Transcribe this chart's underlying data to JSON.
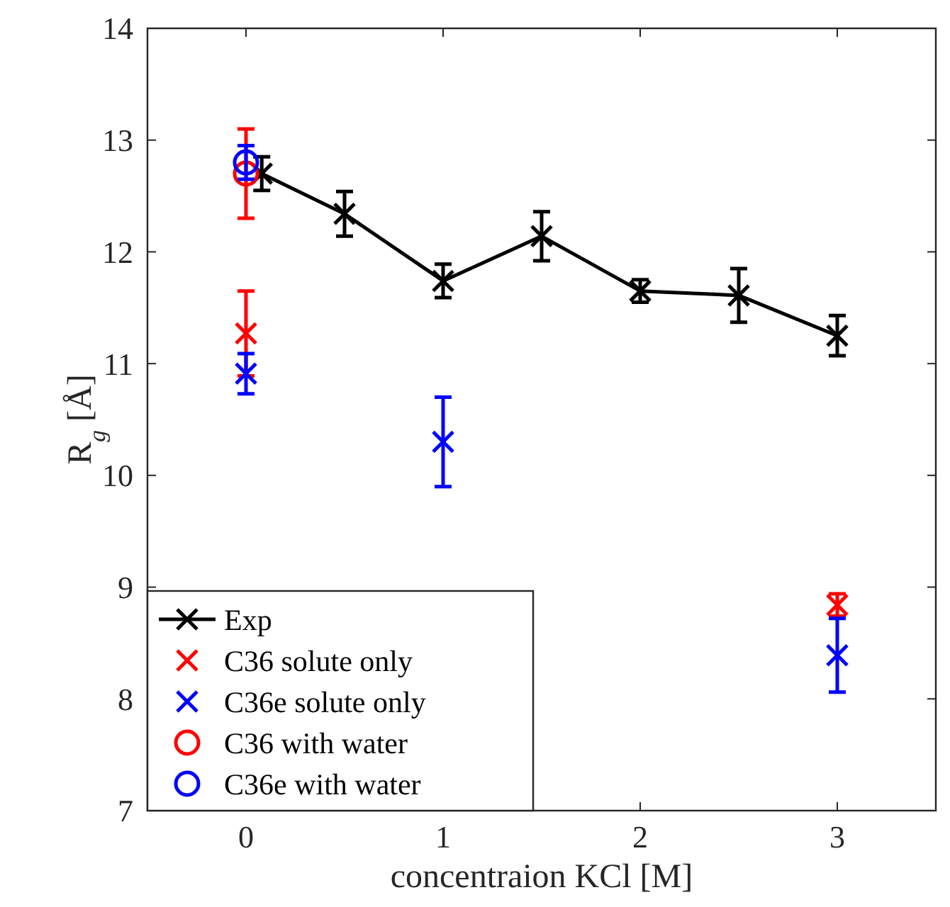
{
  "chart_data": {
    "type": "scatter",
    "xlabel": "concentraion KCl [M]",
    "ylabel": "R$_{g}$ [Å]",
    "xlim": [
      -0.5,
      3.5
    ],
    "ylim": [
      7,
      14
    ],
    "xticks": [
      0,
      1,
      2,
      3
    ],
    "yticks": [
      7,
      8,
      9,
      10,
      11,
      12,
      13,
      14
    ],
    "legend": "bottom left",
    "series": [
      {
        "name": "Exp",
        "type": "line",
        "color": "#000000",
        "marker": "cross",
        "line_style": "solid",
        "x": [
          0.08,
          0.5,
          1,
          1.5,
          2,
          2.5,
          3
        ],
        "values": [
          12.7,
          12.34,
          11.74,
          12.14,
          11.65,
          11.61,
          11.25
        ],
        "errors": [
          0.15,
          0.2,
          0.15,
          0.22,
          0.1,
          0.24,
          0.18
        ]
      },
      {
        "name": "C36 solute only",
        "color": "#ff0000",
        "marker": "cross",
        "x": [
          0,
          3
        ],
        "values": [
          11.27,
          8.84
        ],
        "errors": [
          0.38,
          0.1
        ]
      },
      {
        "name": "C36e solute only",
        "color": "#0000ff",
        "marker": "cross",
        "x": [
          0,
          1,
          3
        ],
        "values": [
          10.91,
          10.3,
          8.39
        ],
        "errors": [
          0.18,
          0.4,
          0.33
        ]
      },
      {
        "name": "C36 with water",
        "color": "#ff0000",
        "marker": "circle",
        "x": [
          0
        ],
        "values": [
          12.7
        ],
        "errors": [
          0.4
        ]
      },
      {
        "name": "C36e with water",
        "color": "#0000ff",
        "marker": "circle",
        "x": [
          0
        ],
        "values": [
          12.8
        ],
        "errors": [
          0.15
        ]
      }
    ]
  }
}
